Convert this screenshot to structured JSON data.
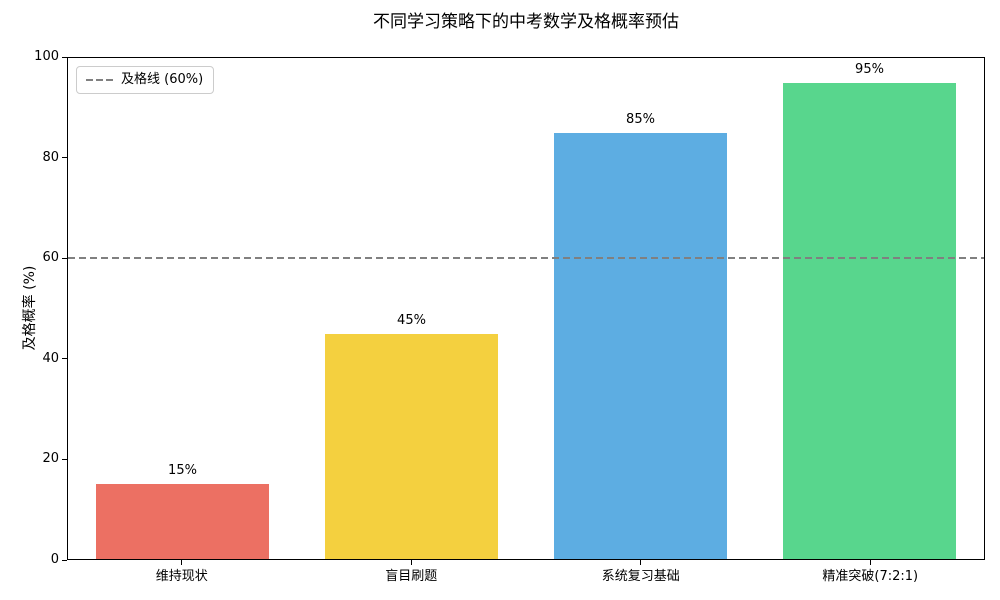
{
  "chart_data": {
    "type": "bar",
    "title": "不同学习策略下的中考数学及格概率预估",
    "ylabel": "及格概率 (%)",
    "xlabel": "",
    "categories": [
      "维持现状",
      "盲目刷题",
      "系统复习基础",
      "精准突破(7:2:1)"
    ],
    "values": [
      15,
      45,
      85,
      95
    ],
    "value_labels": [
      "15%",
      "45%",
      "85%",
      "95%"
    ],
    "bar_colors": [
      "#EC7063",
      "#F4D03F",
      "#5DADE2",
      "#58D68D"
    ],
    "ylim": [
      0,
      100
    ],
    "yticks": [
      0,
      20,
      40,
      60,
      80,
      100
    ],
    "grid": false,
    "legend": {
      "position": "upper left",
      "entries": [
        {
          "label": "及格线 (60%)",
          "line_color": "#808080",
          "line_style": "dashed"
        }
      ]
    },
    "reference_line": {
      "value": 60,
      "color": "#808080",
      "style": "dashed"
    }
  }
}
